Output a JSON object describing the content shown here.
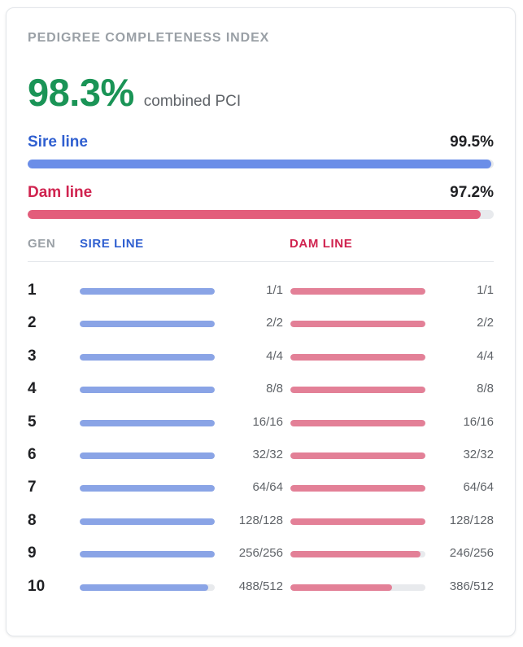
{
  "title": "PEDIGREE COMPLETENESS INDEX",
  "combined": {
    "value": "98.3%",
    "label": "combined PCI",
    "color": "#1a9456"
  },
  "sire": {
    "label": "Sire line",
    "pct_text": "99.5%",
    "pct": 99.5,
    "color": "#2f5fd0",
    "bar_color": "#6b8ee8",
    "row_bar_color": "#8aa4e6"
  },
  "dam": {
    "label": "Dam line",
    "pct_text": "97.2%",
    "pct": 97.2,
    "color": "#d0234f",
    "bar_color": "#e35d7b",
    "row_bar_color": "#e38097"
  },
  "table": {
    "headers": {
      "gen": "GEN",
      "sire": "SIRE LINE",
      "dam": "DAM LINE"
    },
    "rows": [
      {
        "gen": "1",
        "sire_found": 1,
        "sire_total": 1,
        "sire_text": "1/1",
        "dam_found": 1,
        "dam_total": 1,
        "dam_text": "1/1"
      },
      {
        "gen": "2",
        "sire_found": 2,
        "sire_total": 2,
        "sire_text": "2/2",
        "dam_found": 2,
        "dam_total": 2,
        "dam_text": "2/2"
      },
      {
        "gen": "3",
        "sire_found": 4,
        "sire_total": 4,
        "sire_text": "4/4",
        "dam_found": 4,
        "dam_total": 4,
        "dam_text": "4/4"
      },
      {
        "gen": "4",
        "sire_found": 8,
        "sire_total": 8,
        "sire_text": "8/8",
        "dam_found": 8,
        "dam_total": 8,
        "dam_text": "8/8"
      },
      {
        "gen": "5",
        "sire_found": 16,
        "sire_total": 16,
        "sire_text": "16/16",
        "dam_found": 16,
        "dam_total": 16,
        "dam_text": "16/16"
      },
      {
        "gen": "6",
        "sire_found": 32,
        "sire_total": 32,
        "sire_text": "32/32",
        "dam_found": 32,
        "dam_total": 32,
        "dam_text": "32/32"
      },
      {
        "gen": "7",
        "sire_found": 64,
        "sire_total": 64,
        "sire_text": "64/64",
        "dam_found": 64,
        "dam_total": 64,
        "dam_text": "64/64"
      },
      {
        "gen": "8",
        "sire_found": 128,
        "sire_total": 128,
        "sire_text": "128/128",
        "dam_found": 128,
        "dam_total": 128,
        "dam_text": "128/128"
      },
      {
        "gen": "9",
        "sire_found": 256,
        "sire_total": 256,
        "sire_text": "256/256",
        "dam_found": 246,
        "dam_total": 256,
        "dam_text": "246/256"
      },
      {
        "gen": "10",
        "sire_found": 488,
        "sire_total": 512,
        "sire_text": "488/512",
        "dam_found": 386,
        "dam_total": 512,
        "dam_text": "386/512"
      }
    ]
  }
}
